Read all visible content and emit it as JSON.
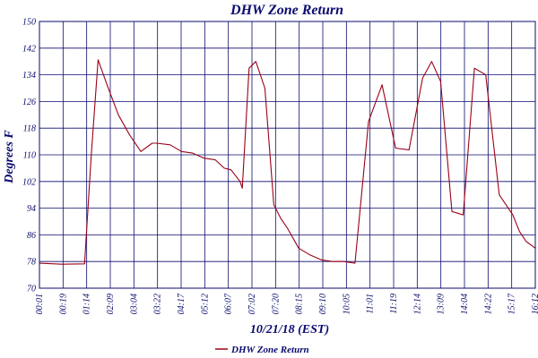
{
  "colors": {
    "series": "#9b0018",
    "axis": "#0b0b6e",
    "grid": "#0b0b6e",
    "background": "#ffffff"
  },
  "chart_data": {
    "type": "line",
    "title": "DHW Zone Return",
    "xlabel": "10/21/18 (EST)",
    "ylabel": "Degrees F",
    "ylim": [
      70,
      150
    ],
    "yticks": [
      70,
      78,
      86,
      94,
      102,
      110,
      118,
      126,
      134,
      142,
      150
    ],
    "xlim": [
      "00:01",
      "16:12"
    ],
    "xticks": [
      "00:01",
      "00:19",
      "01:14",
      "02:09",
      "03:04",
      "03:22",
      "04:17",
      "05:12",
      "06:07",
      "07:02",
      "07:20",
      "08:15",
      "09:10",
      "10:05",
      "11:01",
      "11:19",
      "12:14",
      "13:09",
      "14:04",
      "14:22",
      "15:17",
      "16:12"
    ],
    "grid": true,
    "legend_position": "bottom",
    "series": [
      {
        "name": "DHW Zone Return",
        "x": [
          0,
          1,
          2,
          2.3,
          2.6,
          3,
          3.5,
          4,
          4.5,
          5,
          5.2,
          5.8,
          6.3,
          6.8,
          7.3,
          7.8,
          8.2,
          8.5,
          8.9,
          9,
          9.3,
          9.6,
          10,
          10.4,
          10.7,
          11,
          11.5,
          12,
          12.5,
          13,
          13.5,
          14,
          14.6,
          15.2,
          15.8,
          16.4,
          17,
          17.4,
          17.8,
          18.3,
          18.8,
          19.3,
          19.8,
          20.4,
          21,
          21.3,
          21.6,
          21.8,
          22
        ],
        "y": [
          77.5,
          77.2,
          77.3,
          110,
          138.5,
          131,
          122,
          116,
          111,
          113.5,
          113.5,
          113,
          111,
          110.5,
          109,
          108.5,
          106,
          105.5,
          102,
          100,
          136,
          138,
          130,
          95,
          91,
          88,
          82,
          80,
          78.5,
          78,
          78,
          77.5,
          120,
          131,
          112,
          111.5,
          133,
          138,
          132,
          93,
          92,
          136,
          134,
          98,
          92,
          87,
          84,
          83,
          82
        ]
      }
    ]
  }
}
